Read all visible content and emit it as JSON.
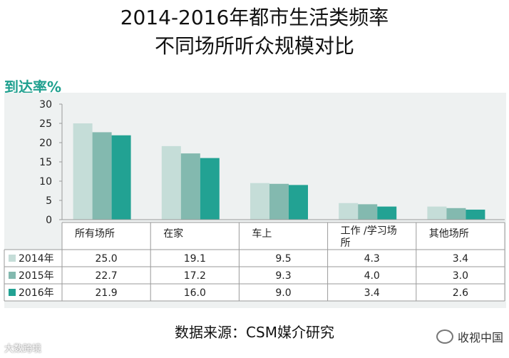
{
  "title_line1": "2014-2016年都市生活类频率",
  "title_line2": "不同场所听众规模对比",
  "chart_data": {
    "type": "bar",
    "ylabel": "到达率%",
    "ylim": [
      0,
      30
    ],
    "yticks": [
      0,
      5,
      10,
      15,
      20,
      25,
      30
    ],
    "grid": false,
    "categories": [
      "所有场所",
      "在家",
      "车上",
      "工作 /学习场所",
      "其他场所"
    ],
    "series": [
      {
        "name": "2014年",
        "color": "#c5ddd8",
        "values": [
          25.0,
          19.1,
          9.5,
          4.3,
          3.4
        ],
        "labels": [
          "25.0",
          "19.1",
          "9.5",
          "4.3",
          "3.4"
        ]
      },
      {
        "name": "2015年",
        "color": "#83b9af",
        "values": [
          22.7,
          17.2,
          9.3,
          4.0,
          3.0
        ],
        "labels": [
          "22.7",
          "17.2",
          "9.3",
          "4.0",
          "3.0"
        ]
      },
      {
        "name": "2016年",
        "color": "#22a293",
        "values": [
          21.9,
          16.0,
          9.0,
          3.4,
          2.6
        ],
        "labels": [
          "21.9",
          "16.0",
          "9.0",
          "3.4",
          "2.6"
        ]
      }
    ]
  },
  "source": "数据来源：CSM媒介研究",
  "watermark_left": "大数跨境",
  "watermark_right": "收视中国"
}
